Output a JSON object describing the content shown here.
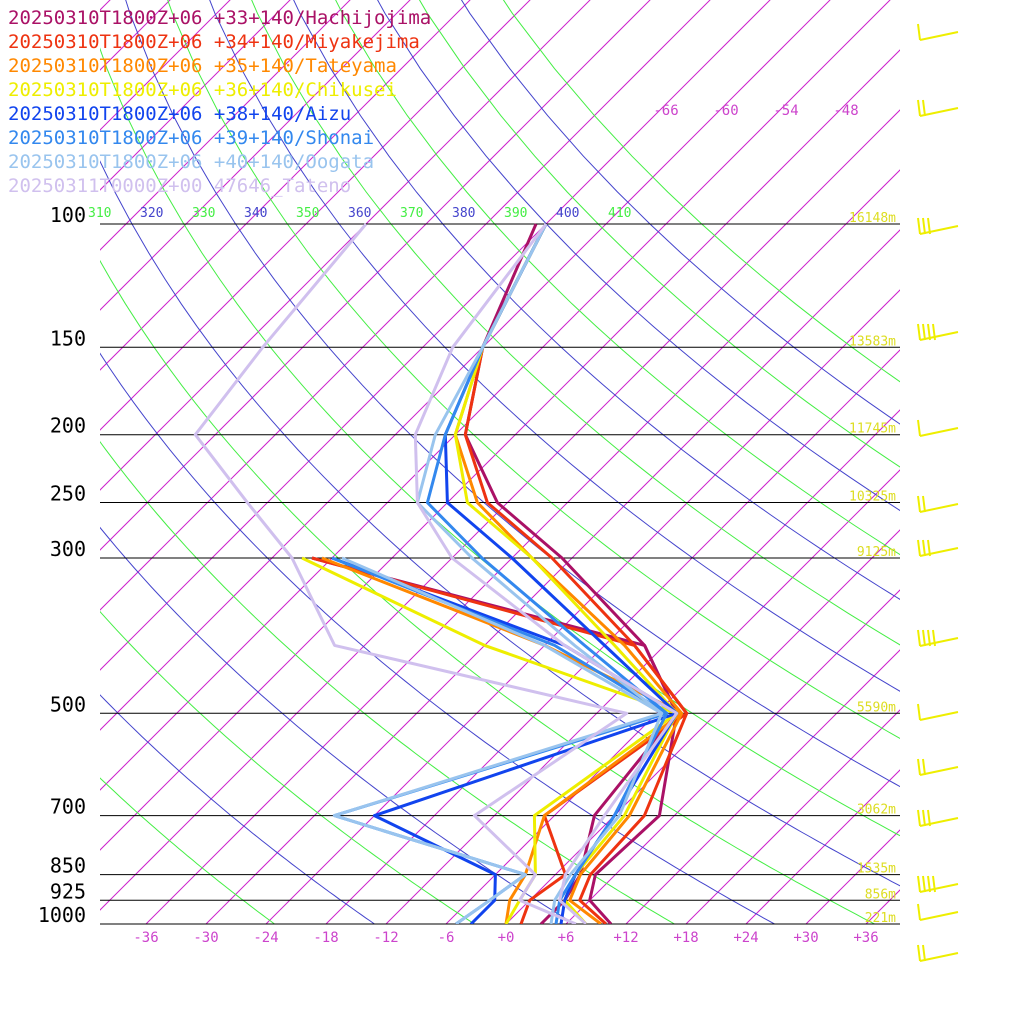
{
  "chart_data": {
    "type": "line",
    "title": "",
    "xlabel": "",
    "ylabel": "",
    "pressure_levels": [
      100,
      150,
      200,
      250,
      300,
      500,
      700,
      850,
      925,
      1000
    ],
    "pressure_labels": [
      "100",
      "150",
      "200",
      "250",
      "300",
      "500",
      "700",
      "850",
      "925",
      "1000"
    ],
    "height_labels": [
      {
        "p": 100,
        "text": "16148m"
      },
      {
        "p": 150,
        "text": "13583m"
      },
      {
        "p": 200,
        "text": "11745m"
      },
      {
        "p": 250,
        "text": "10325m"
      },
      {
        "p": 300,
        "text": "9125m"
      },
      {
        "p": 500,
        "text": "5590m"
      },
      {
        "p": 700,
        "text": "3062m"
      },
      {
        "p": 850,
        "text": "1535m"
      },
      {
        "p": 925,
        "text": "856m"
      },
      {
        "p": 1000,
        "text": "221m"
      }
    ],
    "x_ticks": [
      -36,
      -30,
      -24,
      -18,
      -12,
      -6,
      0,
      6,
      12,
      18,
      24,
      30,
      36
    ],
    "x_tick_labels": [
      "-36",
      "-30",
      "-24",
      "-18",
      "-12",
      "-6",
      "+0",
      "+6",
      "+12",
      "+18",
      "+24",
      "+30",
      "+36"
    ],
    "upper_temp_labels": [
      "-66",
      "-60",
      "-54",
      "-48"
    ],
    "theta_labels": [
      {
        "text": "310",
        "color": "#44ee44"
      },
      {
        "text": "320",
        "color": "#4444cc"
      },
      {
        "text": "330",
        "color": "#44ee44"
      },
      {
        "text": "340",
        "color": "#4444cc"
      },
      {
        "text": "350",
        "color": "#44ee44"
      },
      {
        "text": "360",
        "color": "#4444cc"
      },
      {
        "text": "370",
        "color": "#44ee44"
      },
      {
        "text": "380",
        "color": "#4444cc"
      },
      {
        "text": "390",
        "color": "#44ee44"
      },
      {
        "text": "400",
        "color": "#4444cc"
      },
      {
        "text": "410",
        "color": "#44ee44"
      }
    ],
    "xlim": [
      -40,
      40
    ],
    "plim": [
      1000,
      100
    ],
    "series": [
      {
        "name": "20250310T1800Z+06 +33+140/Hachijojima",
        "color": "#aa1166",
        "T": [
          [
            1000,
            10.5
          ],
          [
            925,
            6
          ],
          [
            850,
            4
          ],
          [
            700,
            4.5
          ],
          [
            500,
            -4
          ],
          [
            400,
            -14
          ],
          [
            300,
            -31
          ],
          [
            250,
            -43
          ],
          [
            200,
            -53
          ],
          [
            150,
            -60
          ],
          [
            100,
            -67
          ]
        ],
        "Td": [
          [
            1000,
            3.5
          ],
          [
            925,
            3.5
          ],
          [
            850,
            2.5
          ],
          [
            700,
            -2
          ],
          [
            500,
            -4
          ],
          [
            400,
            -14
          ],
          [
            300,
            -56
          ]
        ]
      },
      {
        "name": "20250310T1800Z+06 +34+140/Miyakejima",
        "color": "#ee3311",
        "T": [
          [
            1000,
            10
          ],
          [
            925,
            5
          ],
          [
            850,
            3.5
          ],
          [
            700,
            3
          ],
          [
            500,
            -3
          ],
          [
            400,
            -15
          ],
          [
            300,
            -32
          ],
          [
            250,
            -44
          ],
          [
            200,
            -53
          ],
          [
            150,
            -60
          ],
          [
            100,
            -66
          ]
        ],
        "Td": [
          [
            1000,
            1.5
          ],
          [
            925,
            0
          ],
          [
            850,
            1
          ],
          [
            700,
            -7
          ],
          [
            500,
            -3
          ],
          [
            400,
            -15
          ],
          [
            300,
            -56
          ]
        ]
      },
      {
        "name": "20250310T1800Z+06 +35+140/Tateyama",
        "color": "#ff8800",
        "T": [
          [
            1000,
            9.5
          ],
          [
            925,
            4
          ],
          [
            850,
            2.5
          ],
          [
            700,
            1.5
          ],
          [
            500,
            -3.5
          ],
          [
            400,
            -16
          ],
          [
            300,
            -34
          ],
          [
            250,
            -45
          ],
          [
            200,
            -54
          ],
          [
            150,
            -60
          ],
          [
            100,
            -66
          ]
        ],
        "Td": [
          [
            1000,
            0
          ],
          [
            925,
            -2
          ],
          [
            850,
            -3
          ],
          [
            700,
            -7
          ],
          [
            500,
            -3.5
          ],
          [
            400,
            -24
          ],
          [
            300,
            -55
          ]
        ]
      },
      {
        "name": "20250310T1800Z+06 +36+140/Chikusei",
        "color": "#eeee00",
        "T": [
          [
            1000,
            8
          ],
          [
            925,
            3.5
          ],
          [
            850,
            2
          ],
          [
            700,
            1
          ],
          [
            500,
            -4
          ],
          [
            400,
            -17
          ],
          [
            300,
            -34
          ],
          [
            250,
            -46
          ],
          [
            200,
            -54
          ],
          [
            150,
            -60
          ],
          [
            100,
            -66
          ]
        ],
        "Td": [
          [
            1000,
            0
          ],
          [
            925,
            -1
          ],
          [
            850,
            -2
          ],
          [
            700,
            -8
          ],
          [
            500,
            -4
          ],
          [
            400,
            -30
          ],
          [
            300,
            -57
          ]
        ]
      },
      {
        "name": "20250310T1800Z+06 +38+140/Aizu",
        "color": "#1144ee",
        "T": [
          [
            1000,
            5.5
          ],
          [
            925,
            3.5
          ],
          [
            850,
            2
          ],
          [
            700,
            0
          ],
          [
            500,
            -4
          ],
          [
            400,
            -18
          ],
          [
            300,
            -36
          ],
          [
            250,
            -48
          ],
          [
            200,
            -55
          ],
          [
            150,
            -60
          ],
          [
            100,
            -66
          ]
        ],
        "Td": [
          [
            1000,
            -3.5
          ],
          [
            925,
            -3.5
          ],
          [
            850,
            -6
          ],
          [
            700,
            -24
          ],
          [
            500,
            -4
          ],
          [
            400,
            -22
          ],
          [
            300,
            -54
          ]
        ]
      },
      {
        "name": "20250310T1800Z+06 +39+140/Shonai",
        "color": "#3388ee",
        "T": [
          [
            1000,
            5
          ],
          [
            925,
            3
          ],
          [
            850,
            2
          ],
          [
            700,
            0
          ],
          [
            500,
            -5
          ],
          [
            400,
            -20
          ],
          [
            300,
            -39
          ],
          [
            250,
            -50
          ],
          [
            200,
            -55
          ],
          [
            150,
            -60
          ],
          [
            100,
            -66
          ]
        ],
        "Td": [
          [
            1000,
            -5
          ],
          [
            925,
            -4
          ],
          [
            850,
            -3
          ],
          [
            700,
            -28
          ],
          [
            500,
            -5
          ],
          [
            400,
            -23
          ],
          [
            300,
            -54
          ]
        ]
      },
      {
        "name": "20250310T1800Z+06 +40+140/Oogata",
        "color": "#99c4ee",
        "T": [
          [
            1000,
            4.5
          ],
          [
            925,
            2.5
          ],
          [
            850,
            1.5
          ],
          [
            700,
            0.5
          ],
          [
            500,
            -5.5
          ],
          [
            400,
            -21
          ],
          [
            300,
            -40
          ],
          [
            250,
            -51
          ],
          [
            200,
            -56
          ],
          [
            150,
            -60
          ],
          [
            100,
            -66
          ]
        ],
        "Td": [
          [
            1000,
            -5
          ],
          [
            925,
            -4
          ],
          [
            850,
            -3
          ],
          [
            700,
            -28
          ],
          [
            500,
            -5.5
          ],
          [
            400,
            -24
          ],
          [
            300,
            -53
          ]
        ]
      },
      {
        "name": "20250311T0000Z+00 47646_Tateno",
        "color": "#d0c0ee",
        "T": [
          [
            1000,
            8
          ],
          [
            925,
            3
          ],
          [
            850,
            1
          ],
          [
            700,
            -1
          ],
          [
            500,
            -4
          ],
          [
            400,
            -22
          ],
          [
            300,
            -42
          ],
          [
            250,
            -51
          ],
          [
            200,
            -58
          ],
          [
            150,
            -63
          ],
          [
            100,
            -66
          ]
        ],
        "Td": [
          [
            1000,
            7
          ],
          [
            925,
            -1
          ],
          [
            850,
            -2
          ],
          [
            700,
            -14
          ],
          [
            500,
            -9
          ],
          [
            400,
            -45
          ],
          [
            300,
            -58
          ],
          [
            250,
            -68
          ],
          [
            200,
            -80
          ],
          [
            150,
            -82
          ],
          [
            100,
            -84
          ]
        ]
      }
    ]
  }
}
